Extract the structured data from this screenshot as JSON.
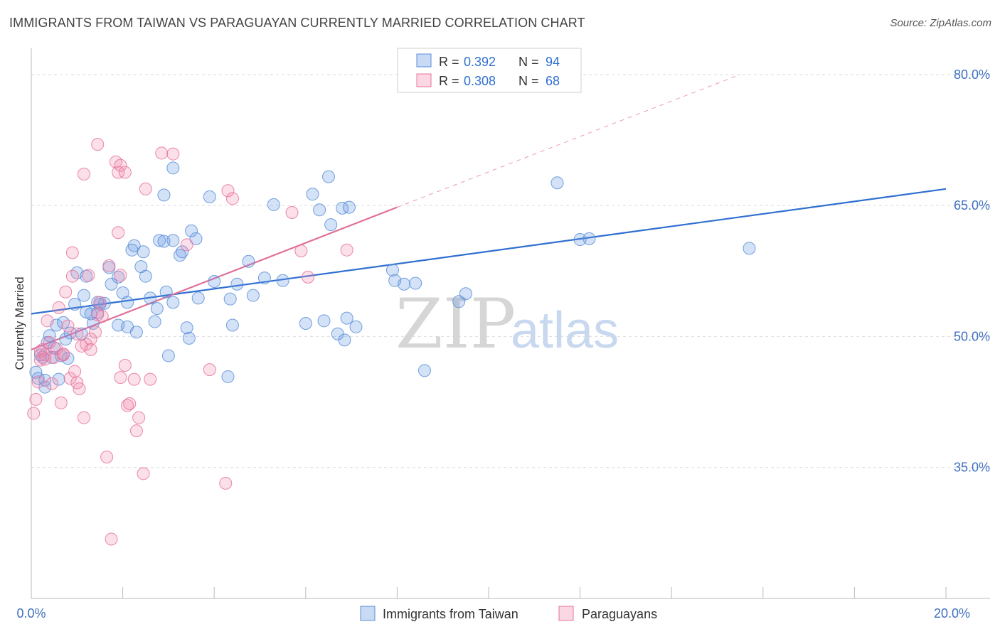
{
  "title": "IMMIGRANTS FROM TAIWAN VS PARAGUAYAN CURRENTLY MARRIED CORRELATION CHART",
  "source": "Source: ZipAtlas.com",
  "watermark": {
    "zip": "ZIP",
    "atlas": "atlas"
  },
  "colors": {
    "blue": "#5b8fd8",
    "blue_fill": "rgba(100,150,225,0.28)",
    "blue_line": "#2f6fd0",
    "pink": "#e8739b",
    "pink_fill": "rgba(240,140,175,0.28)",
    "pink_line": "#e0709a",
    "grid": "#dcdcdc",
    "axis_label": "#3f6fc0"
  },
  "legend_top": {
    "rows": [
      {
        "r_label": "R =",
        "r_value": "0.392",
        "n_label": "N =",
        "n_value": "94"
      },
      {
        "r_label": "R =",
        "r_value": "0.308",
        "n_label": "N =",
        "n_value": "68"
      }
    ]
  },
  "legend_bottom": [
    "Immigrants from Taiwan",
    "Paraguayans"
  ],
  "chart_data": {
    "type": "scatter",
    "xlabel": "",
    "ylabel": "Currently Married",
    "xlim": [
      0,
      20
    ],
    "ylim": [
      20,
      83
    ],
    "x_tick_labels": [
      "0.0%",
      "20.0%"
    ],
    "y_ticks": [
      35,
      50,
      65,
      80
    ],
    "y_tick_labels": [
      "35.0%",
      "50.0%",
      "65.0%",
      "80.0%"
    ],
    "legend_position": "top-center",
    "grid": true,
    "series": [
      {
        "name": "Immigrants from Taiwan",
        "color": "#5b8fd8",
        "trend": {
          "x0": 0,
          "y0": 52.6,
          "x1": 20,
          "y1": 66.9
        },
        "points": [
          [
            0.1,
            45.9
          ],
          [
            0.15,
            45.2
          ],
          [
            0.3,
            45.0
          ],
          [
            0.25,
            47.6
          ],
          [
            0.35,
            49.3
          ],
          [
            0.4,
            50.1
          ],
          [
            0.55,
            51.3
          ],
          [
            0.7,
            51.6
          ],
          [
            0.75,
            49.7
          ],
          [
            0.85,
            50.4
          ],
          [
            0.65,
            47.8
          ],
          [
            0.95,
            53.7
          ],
          [
            1.15,
            54.7
          ],
          [
            1.0,
            57.3
          ],
          [
            1.2,
            56.9
          ],
          [
            1.3,
            52.6
          ],
          [
            1.45,
            52.7
          ],
          [
            1.35,
            51.5
          ],
          [
            1.5,
            53.7
          ],
          [
            1.6,
            53.8
          ],
          [
            1.7,
            57.9
          ],
          [
            1.75,
            56.0
          ],
          [
            1.9,
            56.8
          ],
          [
            2.0,
            55.0
          ],
          [
            2.1,
            53.9
          ],
          [
            1.9,
            51.3
          ],
          [
            2.1,
            51.1
          ],
          [
            2.3,
            50.5
          ],
          [
            2.2,
            59.9
          ],
          [
            2.25,
            60.4
          ],
          [
            2.45,
            59.7
          ],
          [
            2.4,
            58.0
          ],
          [
            2.5,
            56.9
          ],
          [
            2.6,
            54.4
          ],
          [
            2.7,
            51.7
          ],
          [
            2.75,
            53.2
          ],
          [
            2.8,
            61.0
          ],
          [
            2.9,
            60.9
          ],
          [
            2.95,
            55.1
          ],
          [
            3.1,
            53.9
          ],
          [
            3.1,
            61.0
          ],
          [
            3.25,
            59.3
          ],
          [
            3.3,
            59.7
          ],
          [
            3.4,
            51.0
          ],
          [
            3.45,
            49.8
          ],
          [
            3.5,
            62.1
          ],
          [
            3.6,
            61.2
          ],
          [
            3.65,
            54.4
          ],
          [
            3.9,
            66.0
          ],
          [
            3.0,
            47.8
          ],
          [
            4.0,
            56.3
          ],
          [
            4.35,
            54.3
          ],
          [
            4.4,
            51.3
          ],
          [
            4.5,
            56.0
          ],
          [
            4.75,
            58.6
          ],
          [
            4.85,
            54.7
          ],
          [
            5.1,
            56.7
          ],
          [
            5.3,
            65.1
          ],
          [
            5.5,
            56.4
          ],
          [
            6.0,
            51.5
          ],
          [
            6.15,
            66.3
          ],
          [
            6.3,
            64.5
          ],
          [
            6.4,
            51.8
          ],
          [
            6.5,
            68.3
          ],
          [
            6.55,
            62.8
          ],
          [
            6.7,
            50.3
          ],
          [
            6.8,
            64.7
          ],
          [
            6.85,
            49.6
          ],
          [
            6.9,
            52.1
          ],
          [
            6.95,
            64.8
          ],
          [
            7.1,
            51.1
          ],
          [
            7.9,
            57.6
          ],
          [
            7.95,
            56.4
          ],
          [
            8.15,
            56.0
          ],
          [
            8.4,
            56.1
          ],
          [
            8.6,
            46.1
          ],
          [
            9.35,
            54.0
          ],
          [
            9.5,
            54.9
          ],
          [
            11.5,
            67.6
          ],
          [
            12.0,
            61.1
          ],
          [
            12.2,
            61.2
          ],
          [
            15.7,
            60.1
          ],
          [
            3.1,
            69.3
          ],
          [
            2.9,
            66.2
          ],
          [
            0.45,
            47.6
          ],
          [
            0.6,
            45.1
          ],
          [
            1.1,
            50.3
          ],
          [
            0.3,
            44.2
          ],
          [
            1.2,
            52.8
          ],
          [
            4.3,
            45.4
          ],
          [
            0.2,
            47.9
          ],
          [
            0.8,
            47.5
          ],
          [
            1.45,
            53.9
          ],
          [
            0.5,
            48.7
          ]
        ]
      },
      {
        "name": "Paraguayans",
        "color": "#e8739b",
        "trend": {
          "x0": 0,
          "y0": 48.5,
          "x1": 8.0,
          "y1": 64.8,
          "x2": 15.5,
          "y2": 80.0
        },
        "points": [
          [
            0.05,
            41.2
          ],
          [
            0.1,
            42.8
          ],
          [
            0.15,
            44.8
          ],
          [
            0.2,
            47.3
          ],
          [
            0.25,
            48.5
          ],
          [
            0.3,
            47.9
          ],
          [
            0.35,
            51.8
          ],
          [
            0.4,
            49.3
          ],
          [
            0.45,
            44.6
          ],
          [
            0.5,
            47.6
          ],
          [
            0.55,
            48.6
          ],
          [
            0.6,
            53.3
          ],
          [
            0.65,
            42.4
          ],
          [
            0.7,
            47.9
          ],
          [
            0.75,
            55.1
          ],
          [
            0.8,
            51.2
          ],
          [
            0.85,
            45.2
          ],
          [
            0.9,
            56.9
          ],
          [
            0.9,
            59.6
          ],
          [
            0.95,
            46.0
          ],
          [
            1.0,
            44.7
          ],
          [
            1.05,
            44.0
          ],
          [
            1.1,
            48.9
          ],
          [
            1.15,
            40.7
          ],
          [
            1.15,
            68.6
          ],
          [
            1.2,
            49.1
          ],
          [
            1.25,
            57.0
          ],
          [
            1.3,
            49.7
          ],
          [
            1.4,
            50.5
          ],
          [
            1.45,
            52.5
          ],
          [
            1.5,
            53.9
          ],
          [
            1.55,
            52.3
          ],
          [
            1.65,
            36.2
          ],
          [
            1.7,
            58.1
          ],
          [
            1.75,
            26.8
          ],
          [
            1.85,
            70.0
          ],
          [
            1.9,
            61.9
          ],
          [
            1.95,
            57.0
          ],
          [
            1.95,
            45.3
          ],
          [
            2.05,
            46.7
          ],
          [
            2.1,
            42.1
          ],
          [
            2.15,
            42.3
          ],
          [
            2.25,
            45.1
          ],
          [
            2.3,
            39.2
          ],
          [
            2.35,
            40.7
          ],
          [
            2.45,
            34.3
          ],
          [
            2.5,
            66.9
          ],
          [
            2.6,
            45.1
          ],
          [
            2.85,
            71.0
          ],
          [
            3.1,
            70.9
          ],
          [
            3.4,
            60.5
          ],
          [
            3.9,
            46.2
          ],
          [
            4.25,
            33.2
          ],
          [
            4.3,
            66.7
          ],
          [
            4.4,
            65.8
          ],
          [
            5.7,
            64.2
          ],
          [
            5.9,
            59.8
          ],
          [
            6.05,
            56.8
          ],
          [
            6.9,
            59.9
          ],
          [
            1.45,
            72.0
          ],
          [
            1.9,
            68.8
          ],
          [
            1.95,
            69.6
          ],
          [
            2.05,
            68.8
          ],
          [
            0.2,
            48.3
          ],
          [
            0.7,
            48.0
          ],
          [
            1.3,
            48.5
          ],
          [
            1.0,
            50.3
          ],
          [
            0.3,
            47.4
          ]
        ]
      }
    ]
  }
}
